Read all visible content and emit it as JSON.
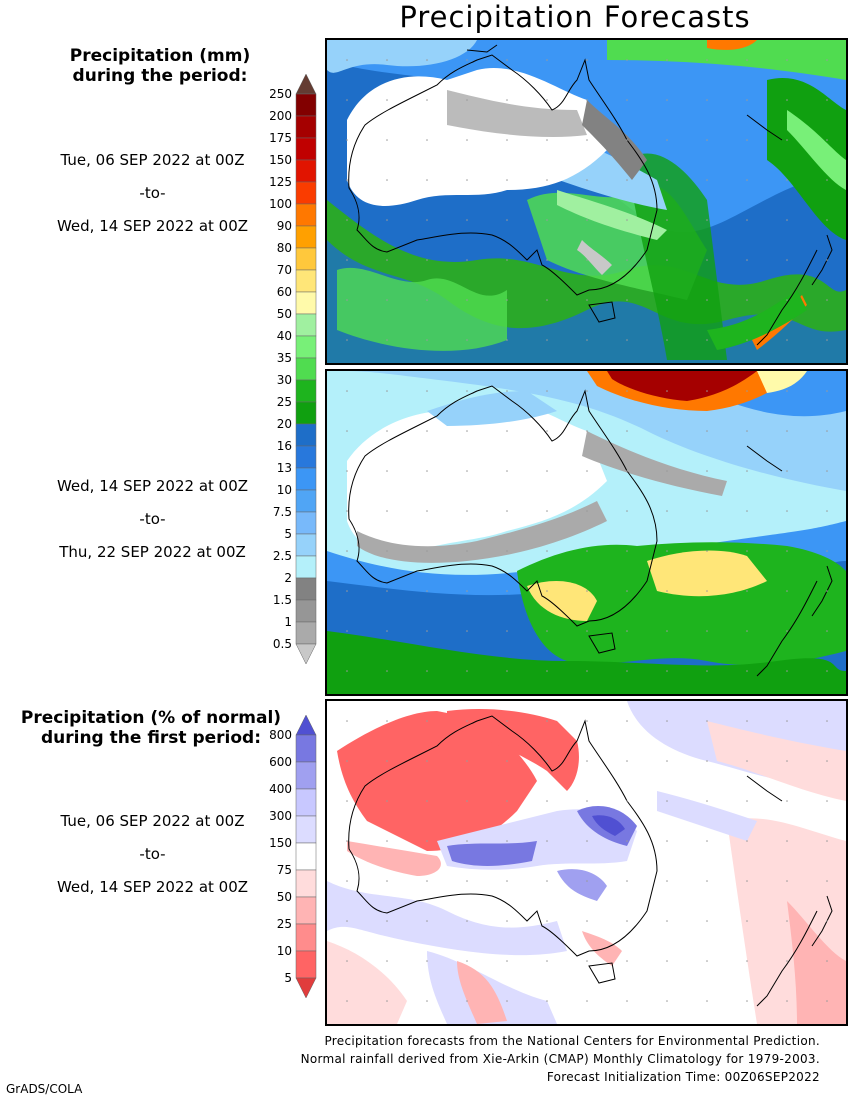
{
  "title": "Precipitation Forecasts",
  "legend_mm": {
    "title_line1": "Precipitation (mm)",
    "title_line2": "during the period:",
    "levels": [
      "0.5",
      "1",
      "1.5",
      "2",
      "2.5",
      "5",
      "7.5",
      "10",
      "13",
      "16",
      "20",
      "25",
      "30",
      "35",
      "40",
      "50",
      "60",
      "70",
      "80",
      "90",
      "100",
      "125",
      "150",
      "175",
      "200",
      "250"
    ],
    "colors": [
      "#c8c8c8",
      "#aaaaaa",
      "#969696",
      "#828282",
      "#b4f0fa",
      "#96d2fa",
      "#78b9fa",
      "#50a5f5",
      "#3c96f5",
      "#2878dc",
      "#1e6ec8",
      "#10a010",
      "#1eb41e",
      "#50dc50",
      "#78f078",
      "#a0f0a0",
      "#fffaaa",
      "#ffe678",
      "#ffc83c",
      "#ffa000",
      "#ff7800",
      "#fa3c00",
      "#e11400",
      "#c00000",
      "#a50000",
      "#820000",
      "#643c32"
    ]
  },
  "legend_pct": {
    "title_line1": "Precipitation (% of normal)",
    "title_line2": "during the first period:",
    "levels": [
      "5",
      "10",
      "25",
      "50",
      "75",
      "150",
      "300",
      "400",
      "600",
      "800"
    ],
    "colors": [
      "#e13c3c",
      "#ff6464",
      "#ff8c8c",
      "#ffb4b4",
      "#ffdcdc",
      "#ffffff",
      "#dcdcff",
      "#c8c8ff",
      "#a0a0f0",
      "#7878e1",
      "#5050d2"
    ]
  },
  "periods": [
    {
      "start": "Tue, 06 SEP 2022 at 00Z",
      "sep": "-to-",
      "end": "Wed, 14 SEP 2022 at 00Z"
    },
    {
      "start": "Wed, 14 SEP 2022 at 00Z",
      "sep": "-to-",
      "end": "Thu, 22 SEP 2022 at 00Z"
    },
    {
      "start": "Tue, 06 SEP 2022 at 00Z",
      "sep": "-to-",
      "end": "Wed, 14 SEP 2022 at 00Z"
    }
  ],
  "footer": {
    "line1": "Precipitation forecasts from the National Centers for Environmental Prediction.",
    "line2": "Normal rainfall derived from Xie-Arkin (CMAP) Monthly Climatology for 1979-2003.",
    "line3": "Forecast Initialization Time: 00Z06SEP2022"
  },
  "credit": "GrADS/COLA"
}
